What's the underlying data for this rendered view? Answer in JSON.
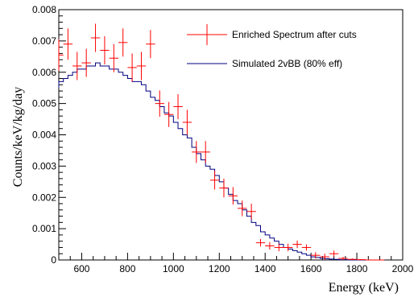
{
  "chart_data": {
    "type": "line",
    "xlabel": "Energy (keV)",
    "ylabel": "Counts/keV/kg/day",
    "xlim": [
      500,
      2000
    ],
    "ylim": [
      0,
      0.008
    ],
    "x_ticks": [
      "600",
      "800",
      "1000",
      "1200",
      "1400",
      "1600",
      "1800",
      "2000"
    ],
    "y_ticks": [
      "0",
      "0.001",
      "0.002",
      "0.003",
      "0.004",
      "0.005",
      "0.006",
      "0.007",
      "0.008"
    ],
    "grid": false,
    "legend_position": "top-right",
    "series": [
      {
        "name": "Enriched Spectrum after cuts",
        "kind": "points-with-error-bars",
        "color": "#ff0000",
        "x": [
          500,
          540,
          580,
          620,
          660,
          700,
          740,
          780,
          820,
          860,
          900,
          940,
          980,
          1020,
          1060,
          1100,
          1140,
          1180,
          1220,
          1260,
          1300,
          1340,
          1380,
          1420,
          1460,
          1500,
          1540,
          1580,
          1620,
          1660,
          1700,
          1740,
          1780,
          1820,
          1860,
          1900
        ],
        "y": [
          0.00655,
          0.0069,
          0.0062,
          0.0063,
          0.0071,
          0.0067,
          0.00645,
          0.00695,
          0.00615,
          0.0062,
          0.0069,
          0.005,
          0.00465,
          0.0049,
          0.0044,
          0.00345,
          0.00345,
          0.00255,
          0.0023,
          0.00205,
          0.00165,
          0.00155,
          0.00055,
          0.00045,
          0.0004,
          0.0004,
          0.0005,
          0.0004,
          0.00015,
          0.0001,
          0.0002,
          5e-05,
          2e-05,
          1e-05,
          0.0,
          0.0
        ],
        "yerr": [
          0.0005,
          0.0005,
          0.00045,
          0.00045,
          0.00045,
          0.00045,
          0.00045,
          0.00045,
          0.00045,
          0.00045,
          0.00045,
          0.00042,
          0.0004,
          0.0004,
          0.0004,
          0.00035,
          0.00035,
          0.0003,
          0.0003,
          0.00028,
          0.00025,
          0.00025,
          0.00012,
          0.00012,
          0.00012,
          0.00012,
          0.00012,
          0.0001,
          0.0001,
          0.0001,
          0.0001,
          5e-05,
          3e-05,
          2e-05,
          0.0,
          0.0
        ]
      },
      {
        "name": "Simulated 2vBB (80% eff)",
        "kind": "step-histogram",
        "color": "#000080",
        "bin_edges": [
          480,
          500,
          520,
          540,
          560,
          580,
          600,
          620,
          640,
          660,
          680,
          700,
          720,
          740,
          760,
          780,
          800,
          820,
          840,
          860,
          880,
          900,
          920,
          940,
          960,
          980,
          1000,
          1020,
          1040,
          1060,
          1080,
          1100,
          1120,
          1140,
          1160,
          1180,
          1200,
          1220,
          1240,
          1260,
          1280,
          1300,
          1320,
          1340,
          1360,
          1380,
          1400,
          1420,
          1440,
          1460,
          1480,
          1500,
          1520,
          1540,
          1560,
          1580,
          1600,
          1620,
          1640,
          1660,
          1680,
          1700,
          1720,
          1740,
          1760,
          1780,
          1800,
          1820,
          1840,
          1860,
          1880,
          1900
        ],
        "values": [
          0.0055,
          0.0057,
          0.0058,
          0.0059,
          0.006,
          0.0061,
          0.0061,
          0.0062,
          0.0062,
          0.0063,
          0.0062,
          0.0062,
          0.0061,
          0.0061,
          0.006,
          0.0059,
          0.0058,
          0.0057,
          0.0057,
          0.0056,
          0.0054,
          0.0052,
          0.0051,
          0.0049,
          0.0047,
          0.0046,
          0.0044,
          0.0042,
          0.004,
          0.0039,
          0.0036,
          0.0034,
          0.0032,
          0.003,
          0.0029,
          0.0027,
          0.0025,
          0.0023,
          0.0021,
          0.0019,
          0.0018,
          0.0016,
          0.0014,
          0.0012,
          0.0011,
          0.0009,
          0.0008,
          0.0007,
          0.0006,
          0.0005,
          0.0004,
          0.00035,
          0.0003,
          0.00025,
          0.0002,
          0.00015,
          0.0001,
          8e-05,
          5e-05,
          4e-05,
          3e-05,
          2e-05,
          1e-05,
          1e-05,
          0.0,
          0.0,
          0.0,
          0.0,
          0.0,
          0.0,
          0.0
        ]
      }
    ]
  }
}
